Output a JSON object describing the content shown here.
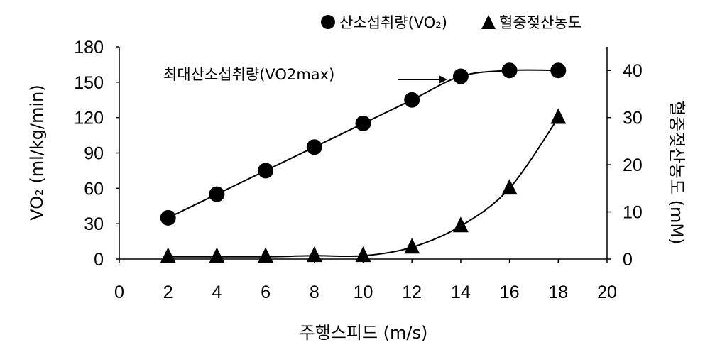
{
  "chart_data": {
    "type": "line",
    "xlabel": "주행스피드 (m/s)",
    "ylabel_left": "VO₂ (ml/kg/min)",
    "ylabel_right": "혈중젖산농도 (mM)",
    "xlim": [
      0,
      20
    ],
    "ylim_left": [
      0,
      180
    ],
    "ylim_right": [
      0,
      45
    ],
    "x_ticks": [
      "0",
      "2",
      "4",
      "6",
      "8",
      "10",
      "12",
      "14",
      "16",
      "18",
      "20"
    ],
    "y_left_ticks": [
      "0",
      "30",
      "60",
      "90",
      "120",
      "150",
      "180"
    ],
    "y_right_ticks": [
      "0",
      "10",
      "20",
      "30",
      "40"
    ],
    "grid": false,
    "legend_position": "top-right",
    "series": [
      {
        "name": "산소섭취량(VO₂)",
        "axis": "left",
        "marker": "circle",
        "color": "#000000",
        "x": [
          2,
          4,
          6,
          8,
          10,
          12,
          14,
          16,
          18
        ],
        "values": [
          35,
          55,
          75,
          95,
          115,
          135,
          155,
          160,
          160
        ]
      },
      {
        "name": "혈중젖산농도",
        "axis": "right",
        "marker": "triangle",
        "color": "#000000",
        "x": [
          2,
          4,
          6,
          8,
          10,
          12,
          14,
          16,
          18
        ],
        "values": [
          0.5,
          0.5,
          0.5,
          0.7,
          0.7,
          2.5,
          7,
          15,
          30
        ]
      }
    ],
    "annotations": [
      {
        "text": "최대산소섭취량(VO2max)",
        "x": 14,
        "y": 155,
        "axis": "left"
      }
    ]
  }
}
